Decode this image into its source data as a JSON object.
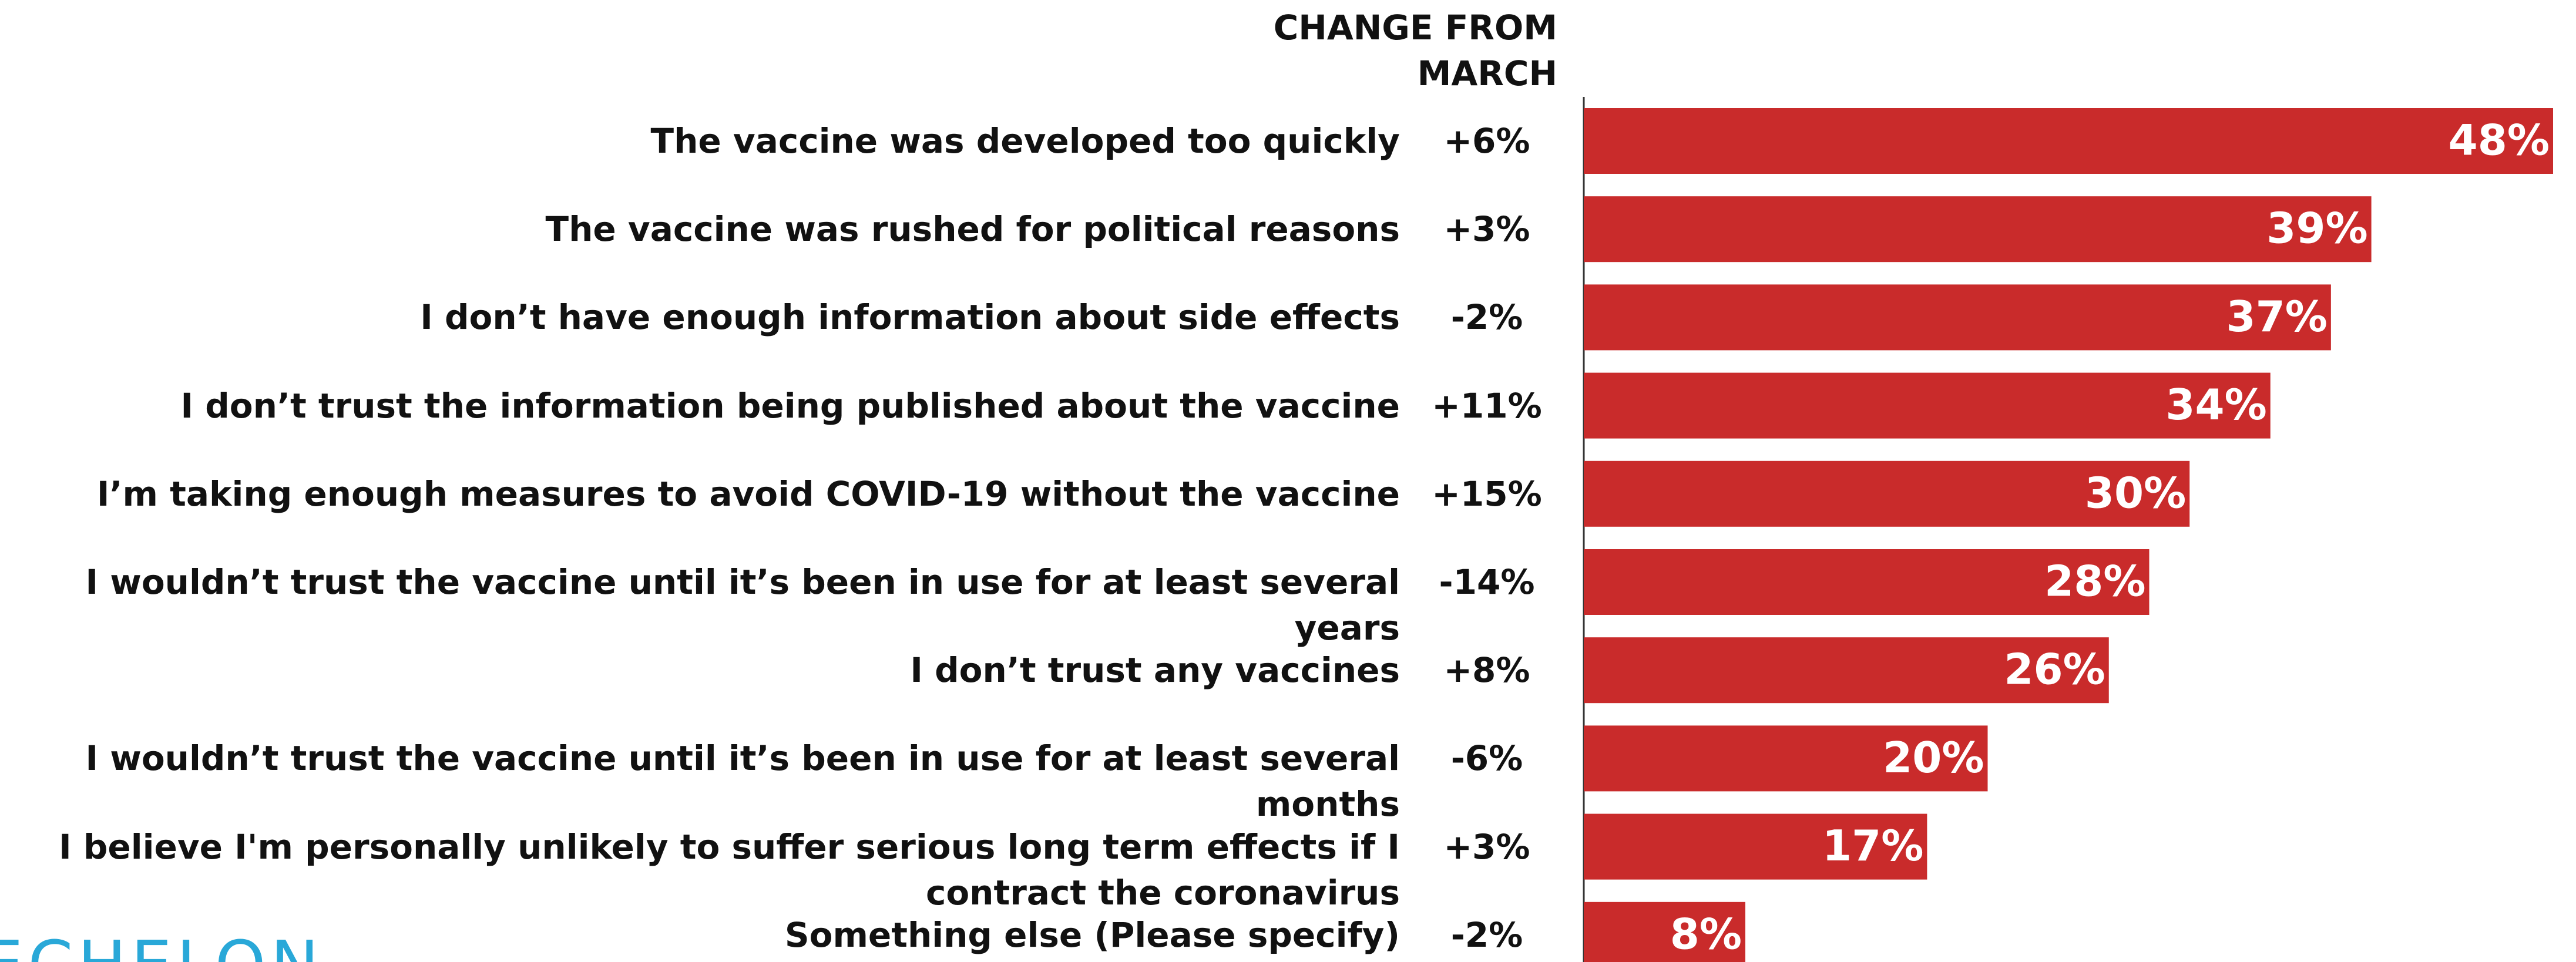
{
  "chart_data": {
    "type": "bar",
    "column_header": [
      "CHANGE FROM",
      "MARCH"
    ],
    "categories": [
      "The vaccine was developed too quickly",
      "The vaccine was rushed for political reasons",
      "I don’t have enough information about side effects",
      "I don’t trust the information being published about the vaccine",
      "I’m taking enough measures to avoid COVID-19 without the vaccine",
      "I wouldn’t trust the vaccine until it’s been in use for at least several years",
      "I don’t trust any vaccines",
      "I wouldn’t trust the vaccine until it’s been in use for at least several months",
      "I believe I'm personally unlikely to suffer serious long term effects if I contract the coronavirus",
      "Something else (Please specify)"
    ],
    "changes": [
      "+6%",
      "+3%",
      "-2%",
      "+11%",
      "+15%",
      "-14%",
      "+8%",
      "-6%",
      "+3%",
      "-2%"
    ],
    "values": [
      48,
      39,
      37,
      34,
      30,
      28,
      26,
      20,
      17,
      8
    ],
    "value_labels": [
      "48%",
      "39%",
      "37%",
      "34%",
      "30%",
      "28%",
      "26%",
      "20%",
      "17%",
      "8%"
    ],
    "color": "#c92b2b",
    "xlim": [
      0,
      48
    ],
    "logo": "ECHELON"
  }
}
